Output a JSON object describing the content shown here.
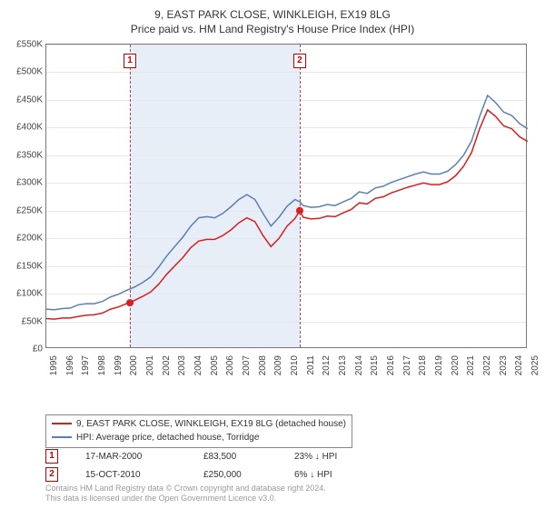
{
  "title": {
    "line1": "9, EAST PARK CLOSE, WINKLEIGH, EX19 8LG",
    "line2": "Price paid vs. HM Land Registry's House Price Index (HPI)"
  },
  "chart": {
    "type": "line",
    "background_color": "#ffffff",
    "grid_color": "#e7e7e7",
    "axis_color": "#777777",
    "ylim": [
      0,
      550000
    ],
    "ytick_step": 50000,
    "yticks": [
      "£0",
      "£50K",
      "£100K",
      "£150K",
      "£200K",
      "£250K",
      "£300K",
      "£350K",
      "£400K",
      "£450K",
      "£500K",
      "£550K"
    ],
    "xlim": [
      1995,
      2025
    ],
    "xticks": [
      1995,
      1996,
      1997,
      1998,
      1999,
      2000,
      2001,
      2002,
      2003,
      2004,
      2005,
      2006,
      2007,
      2008,
      2009,
      2010,
      2011,
      2012,
      2013,
      2014,
      2015,
      2016,
      2017,
      2018,
      2019,
      2020,
      2021,
      2022,
      2023,
      2024,
      2025
    ],
    "band": {
      "start": 2000.21,
      "end": 2010.79,
      "fill": "#e8eef7",
      "edge_color": "#bb4444"
    },
    "series": [
      {
        "name": "price_paid",
        "label": "9, EAST PARK CLOSE, WINKLEIGH, EX19 8LG (detached house)",
        "color": "#d81e1e",
        "line_width": 1.5,
        "data": [
          [
            1995,
            55000
          ],
          [
            1995.5,
            54000
          ],
          [
            1996,
            56000
          ],
          [
            1996.5,
            56000
          ],
          [
            1997,
            59000
          ],
          [
            1997.5,
            61000
          ],
          [
            1998,
            62000
          ],
          [
            1998.5,
            65000
          ],
          [
            1999,
            72000
          ],
          [
            1999.5,
            76000
          ],
          [
            2000,
            82000
          ],
          [
            2000.21,
            83500
          ],
          [
            2000.5,
            88000
          ],
          [
            2001,
            95000
          ],
          [
            2001.5,
            103000
          ],
          [
            2002,
            117000
          ],
          [
            2002.5,
            135000
          ],
          [
            2003,
            150000
          ],
          [
            2003.5,
            165000
          ],
          [
            2004,
            183000
          ],
          [
            2004.5,
            195000
          ],
          [
            2005,
            198000
          ],
          [
            2005.5,
            198000
          ],
          [
            2006,
            205000
          ],
          [
            2006.5,
            215000
          ],
          [
            2007,
            228000
          ],
          [
            2007.5,
            237000
          ],
          [
            2008,
            230000
          ],
          [
            2008.5,
            205000
          ],
          [
            2009,
            185000
          ],
          [
            2009.5,
            200000
          ],
          [
            2010,
            222000
          ],
          [
            2010.5,
            236000
          ],
          [
            2010.79,
            250000
          ],
          [
            2011,
            238000
          ],
          [
            2011.5,
            235000
          ],
          [
            2012,
            236000
          ],
          [
            2012.5,
            240000
          ],
          [
            2013,
            239000
          ],
          [
            2013.5,
            246000
          ],
          [
            2014,
            252000
          ],
          [
            2014.5,
            264000
          ],
          [
            2015,
            262000
          ],
          [
            2015.5,
            272000
          ],
          [
            2016,
            275000
          ],
          [
            2016.5,
            282000
          ],
          [
            2017,
            287000
          ],
          [
            2017.5,
            292000
          ],
          [
            2018,
            296000
          ],
          [
            2018.5,
            300000
          ],
          [
            2019,
            297000
          ],
          [
            2019.5,
            297000
          ],
          [
            2020,
            302000
          ],
          [
            2020.5,
            313000
          ],
          [
            2021,
            330000
          ],
          [
            2021.5,
            355000
          ],
          [
            2022,
            398000
          ],
          [
            2022.5,
            432000
          ],
          [
            2023,
            420000
          ],
          [
            2023.5,
            403000
          ],
          [
            2024,
            398000
          ],
          [
            2024.5,
            383000
          ],
          [
            2025,
            375000
          ]
        ]
      },
      {
        "name": "hpi",
        "label": "HPI: Average price, detached house, Torridge",
        "color": "#5b7fb3",
        "line_width": 1.5,
        "data": [
          [
            1995,
            72000
          ],
          [
            1995.5,
            71000
          ],
          [
            1996,
            73000
          ],
          [
            1996.5,
            74000
          ],
          [
            1997,
            80000
          ],
          [
            1997.5,
            82000
          ],
          [
            1998,
            82000
          ],
          [
            1998.5,
            86000
          ],
          [
            1999,
            94000
          ],
          [
            1999.5,
            99000
          ],
          [
            2000,
            106000
          ],
          [
            2000.5,
            112000
          ],
          [
            2001,
            120000
          ],
          [
            2001.5,
            130000
          ],
          [
            2002,
            148000
          ],
          [
            2002.5,
            168000
          ],
          [
            2003,
            185000
          ],
          [
            2003.5,
            202000
          ],
          [
            2004,
            222000
          ],
          [
            2004.5,
            237000
          ],
          [
            2005,
            239000
          ],
          [
            2005.5,
            237000
          ],
          [
            2006,
            245000
          ],
          [
            2006.5,
            257000
          ],
          [
            2007,
            270000
          ],
          [
            2007.5,
            279000
          ],
          [
            2008,
            270000
          ],
          [
            2008.5,
            245000
          ],
          [
            2009,
            222000
          ],
          [
            2009.5,
            238000
          ],
          [
            2010,
            258000
          ],
          [
            2010.5,
            270000
          ],
          [
            2010.79,
            266000
          ],
          [
            2011,
            259000
          ],
          [
            2011.5,
            256000
          ],
          [
            2012,
            257000
          ],
          [
            2012.5,
            261000
          ],
          [
            2013,
            259000
          ],
          [
            2013.5,
            266000
          ],
          [
            2014,
            272000
          ],
          [
            2014.5,
            284000
          ],
          [
            2015,
            281000
          ],
          [
            2015.5,
            291000
          ],
          [
            2016,
            294000
          ],
          [
            2016.5,
            301000
          ],
          [
            2017,
            306000
          ],
          [
            2017.5,
            311000
          ],
          [
            2018,
            316000
          ],
          [
            2018.5,
            320000
          ],
          [
            2019,
            316000
          ],
          [
            2019.5,
            316000
          ],
          [
            2020,
            321000
          ],
          [
            2020.5,
            333000
          ],
          [
            2021,
            350000
          ],
          [
            2021.5,
            376000
          ],
          [
            2022,
            420000
          ],
          [
            2022.5,
            458000
          ],
          [
            2023,
            445000
          ],
          [
            2023.5,
            428000
          ],
          [
            2024,
            422000
          ],
          [
            2024.5,
            407000
          ],
          [
            2025,
            398000
          ]
        ]
      }
    ],
    "sale_points": [
      {
        "x": 2000.21,
        "y": 83500,
        "color": "#d81e1e",
        "label": "1"
      },
      {
        "x": 2010.79,
        "y": 250000,
        "color": "#d81e1e",
        "label": "2"
      }
    ]
  },
  "legend": {
    "border_color": "#888888"
  },
  "events": [
    {
      "num": "1",
      "date": "17-MAR-2000",
      "price": "£83,500",
      "delta": "23% ↓ HPI"
    },
    {
      "num": "2",
      "date": "15-OCT-2010",
      "price": "£250,000",
      "delta": "6% ↓ HPI"
    }
  ],
  "footer": {
    "line1": "Contains HM Land Registry data © Crown copyright and database right 2024.",
    "line2": "This data is licensed under the Open Government Licence v3.0."
  }
}
